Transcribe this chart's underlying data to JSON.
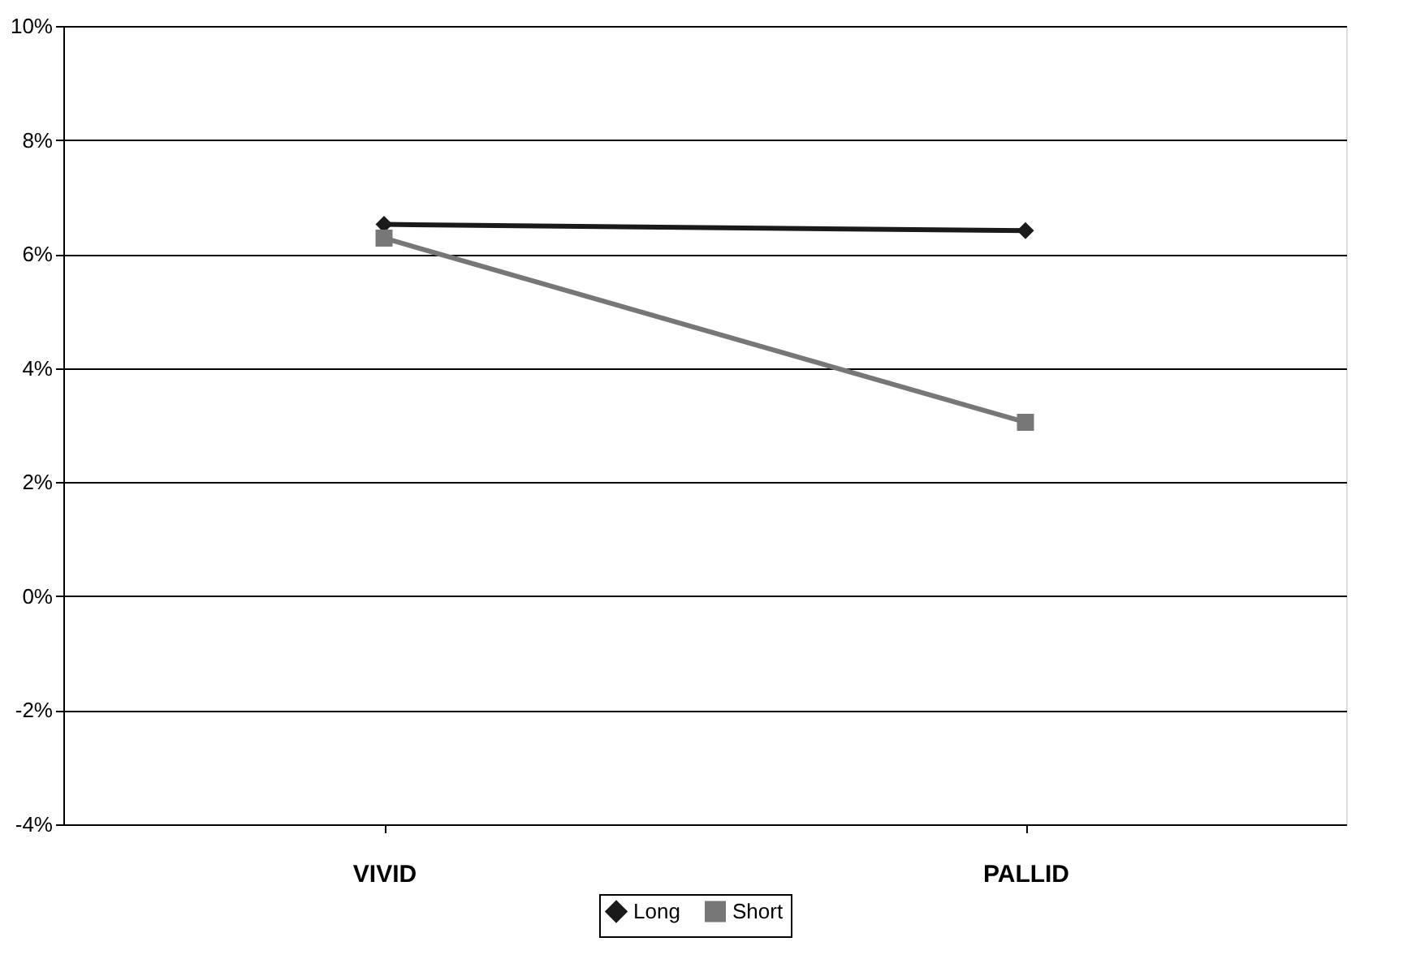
{
  "chart_data": {
    "type": "line",
    "categories": [
      "VIVID",
      "PALLID"
    ],
    "series": [
      {
        "name": "Long",
        "color": "#1a1a1a",
        "values": [
          6.52,
          6.41
        ],
        "marker": "diamond"
      },
      {
        "name": "Short",
        "color": "#777777",
        "values": [
          6.28,
          3.05
        ],
        "marker": "square"
      }
    ],
    "ylim": [
      -4,
      10
    ],
    "yticks": [
      {
        "value": -4,
        "label": "-4%"
      },
      {
        "value": -2,
        "label": "-2%"
      },
      {
        "value": 0,
        "label": "0%"
      },
      {
        "value": 2,
        "label": "2%"
      },
      {
        "value": 4,
        "label": "4%"
      },
      {
        "value": 6,
        "label": "6%"
      },
      {
        "value": 8,
        "label": "8%"
      },
      {
        "value": 10,
        "label": "10%"
      }
    ],
    "grid": "y",
    "legend": "bottom",
    "line_style": "solid"
  }
}
